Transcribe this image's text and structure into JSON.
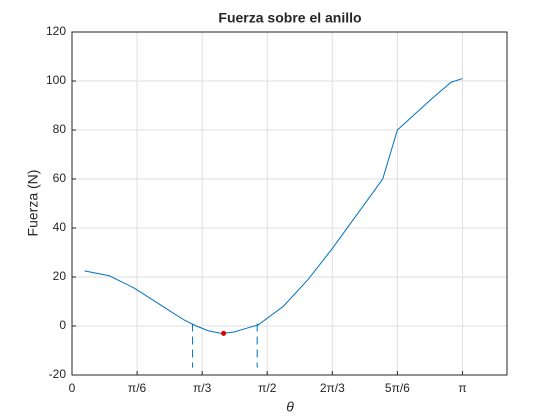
{
  "chart_data": {
    "type": "line",
    "title": "Fuerza sobre el anillo",
    "xlabel": "θ",
    "ylabel": "Fuerza (N)",
    "x": [
      0.1,
      0.3,
      0.5,
      0.7,
      0.9,
      1.0,
      1.1,
      1.2,
      1.3,
      1.4,
      1.5,
      1.7,
      1.9,
      2.1,
      2.3,
      2.5,
      2.618,
      2.9,
      3.05,
      3.1416
    ],
    "series": [
      {
        "color": "#0072bd",
        "values": [
          22.5,
          20.5,
          15.5,
          9,
          2.5,
          0,
          -2,
          -3,
          -2.5,
          -1,
          0.5,
          8,
          19,
          32,
          46,
          60,
          80,
          93,
          99.5,
          101
        ]
      }
    ],
    "points": [
      {
        "x": 1.22,
        "y": -3,
        "color": "#d40000"
      }
    ],
    "vlines": [
      {
        "x": 0.97,
        "y": [
          1,
          -17
        ],
        "color": "#0072bd"
      },
      {
        "x": 1.49,
        "y": [
          1,
          -17
        ],
        "color": "#0072bd"
      }
    ],
    "xlim": [
      0,
      3.5
    ],
    "ylim": [
      -20,
      120
    ],
    "xticks": [
      0,
      {
        "value": 0.5236,
        "label": "π/6"
      },
      {
        "value": 1.0472,
        "label": "π/3"
      },
      {
        "value": 1.5708,
        "label": "π/2"
      },
      {
        "value": 2.0944,
        "label": "2π/3"
      },
      {
        "value": 2.618,
        "label": "5π/6"
      },
      {
        "value": 3.1416,
        "label": "π"
      }
    ],
    "yticks": [
      -20,
      0,
      20,
      40,
      60,
      80,
      100,
      120
    ],
    "grid": true
  }
}
